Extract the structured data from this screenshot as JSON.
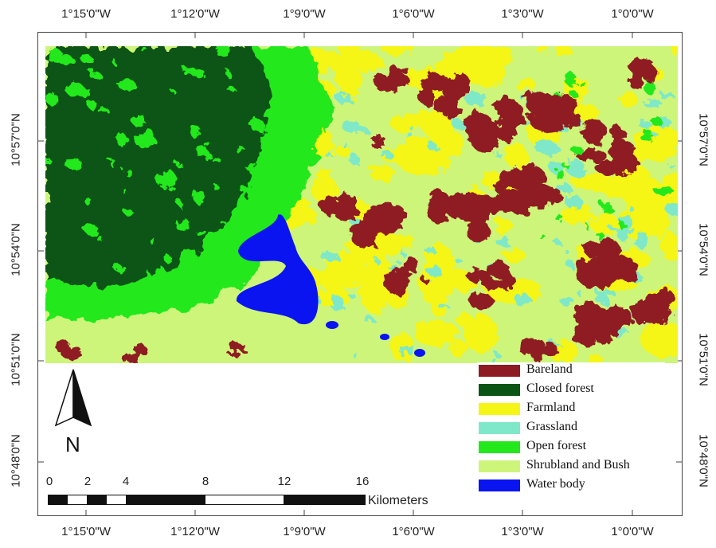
{
  "map": {
    "top_ticks": [
      "1°15'0\"W",
      "1°12'0\"W",
      "1°9'0\"W",
      "1°6'0\"W",
      "1°3'0\"W",
      "1°0'0\"W"
    ],
    "bottom_ticks": [
      "1°15'0\"W",
      "1°12'0\"W",
      "1°9'0\"W",
      "1°6'0\"W",
      "1°3'0\"W",
      "1°0'0\"W"
    ],
    "left_ticks": [
      "10°57'0\"N",
      "10°54'0\"N",
      "10°51'0\"N",
      "10°48'0\"N"
    ],
    "right_ticks": [
      "10°57'0\"N",
      "10°54'0\"N",
      "10°51'0\"N",
      "10°48'0\"N"
    ],
    "north_letter": "N",
    "scale": {
      "numbers": [
        "0",
        "2",
        "4",
        "8",
        "12",
        "16"
      ],
      "unit": "Kilometers"
    },
    "legend": [
      {
        "label": "Bareland",
        "color": "#8e1b24"
      },
      {
        "label": "Closed forest",
        "color": "#0a5414"
      },
      {
        "label": "Farmland",
        "color": "#f5f516"
      },
      {
        "label": "Grassland",
        "color": "#7ee8c8"
      },
      {
        "label": "Open forest",
        "color": "#22e81c"
      },
      {
        "label": "Shrubland and Bush",
        "color": "#cdf57a"
      },
      {
        "label": "Water body",
        "color": "#0a14f0"
      }
    ]
  }
}
